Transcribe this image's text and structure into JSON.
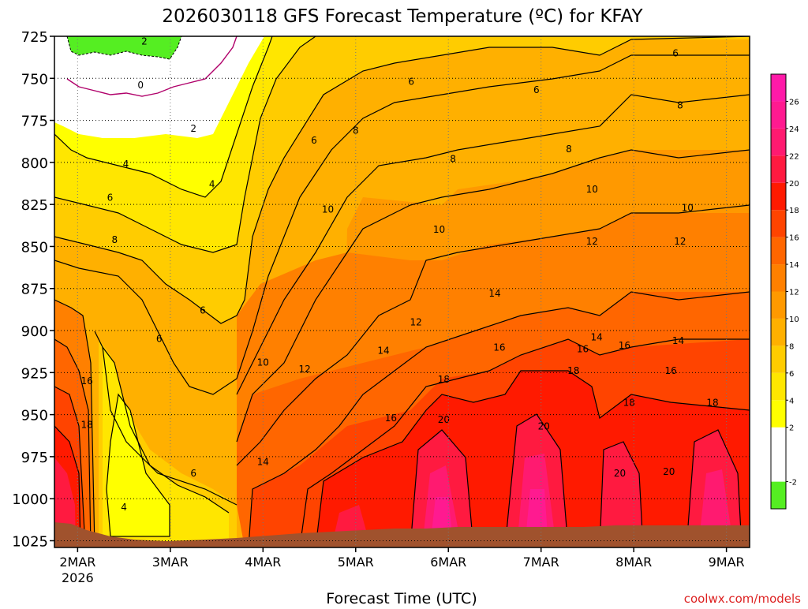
{
  "chart_data": {
    "type": "heatmap",
    "title": "2026030118 GFS Forecast Temperature (ºC) for KFAY",
    "xlabel": "Forecast Time (UTC)",
    "ylabel": "",
    "credit": "coolwx.com/models",
    "x_ticks": [
      {
        "label": "2MAR",
        "sublabel": "2026",
        "day": 0
      },
      {
        "label": "3MAR",
        "day": 1
      },
      {
        "label": "4MAR",
        "day": 2
      },
      {
        "label": "5MAR",
        "day": 3
      },
      {
        "label": "6MAR",
        "day": 4
      },
      {
        "label": "7MAR",
        "day": 5
      },
      {
        "label": "8MAR",
        "day": 6
      },
      {
        "label": "9MAR",
        "day": 7
      }
    ],
    "xlim_days": [
      -0.25,
      7.25
    ],
    "y_ticks": [
      725,
      750,
      775,
      800,
      825,
      850,
      875,
      900,
      925,
      950,
      975,
      1000,
      1025
    ],
    "ylim_hpa": [
      725,
      1029
    ],
    "grid": true,
    "colorbar": {
      "bands": [
        {
          "from": -4,
          "to": -2,
          "color": "#55ee22"
        },
        {
          "from": -2,
          "to": 2,
          "color": "#ffffff"
        },
        {
          "from": 2,
          "to": 4,
          "color": "#ffff00"
        },
        {
          "from": 4,
          "to": 6,
          "color": "#ffe600"
        },
        {
          "from": 6,
          "to": 8,
          "color": "#ffcc00"
        },
        {
          "from": 8,
          "to": 10,
          "color": "#ffb000"
        },
        {
          "from": 10,
          "to": 12,
          "color": "#ff9900"
        },
        {
          "from": 12,
          "to": 14,
          "color": "#ff8000"
        },
        {
          "from": 14,
          "to": 16,
          "color": "#ff6600"
        },
        {
          "from": 16,
          "to": 18,
          "color": "#ff4400"
        },
        {
          "from": 18,
          "to": 20,
          "color": "#ff1a00"
        },
        {
          "from": 20,
          "to": 22,
          "color": "#ff1a40"
        },
        {
          "from": 22,
          "to": 24,
          "color": "#ff1a70"
        },
        {
          "from": 24,
          "to": 26,
          "color": "#ff1a90"
        },
        {
          "from": 26,
          "to": 28,
          "color": "#ff1aa8"
        }
      ],
      "tick_labels": [
        "-2",
        "2",
        "4",
        "6",
        "8",
        "10",
        "12",
        "14",
        "16",
        "18",
        "20",
        "22",
        "24",
        "26"
      ],
      "tick_values": [
        -2,
        2,
        4,
        6,
        8,
        10,
        12,
        14,
        16,
        18,
        20,
        22,
        24,
        26
      ]
    },
    "ground_color": "#a0522d",
    "contour_labels": [
      {
        "text": "2",
        "day": 0.72,
        "p": 728
      },
      {
        "text": "0",
        "day": 0.68,
        "p": 754
      },
      {
        "text": "2",
        "day": 1.25,
        "p": 780
      },
      {
        "text": "4",
        "day": 0.52,
        "p": 801
      },
      {
        "text": "4",
        "day": 1.45,
        "p": 813
      },
      {
        "text": "6",
        "day": 0.35,
        "p": 821
      },
      {
        "text": "6",
        "day": 2.55,
        "p": 787
      },
      {
        "text": "8",
        "day": 0.4,
        "p": 846
      },
      {
        "text": "6",
        "day": 1.35,
        "p": 888
      },
      {
        "text": "6",
        "day": 0.88,
        "p": 905
      },
      {
        "text": "6",
        "day": 1.25,
        "p": 985
      },
      {
        "text": "4",
        "day": 0.5,
        "p": 1005
      },
      {
        "text": "16",
        "day": 0.1,
        "p": 930
      },
      {
        "text": "18",
        "day": 0.1,
        "p": 956
      },
      {
        "text": "8",
        "day": 3.0,
        "p": 781
      },
      {
        "text": "10",
        "day": 2.7,
        "p": 828
      },
      {
        "text": "10",
        "day": 2.0,
        "p": 919
      },
      {
        "text": "12",
        "day": 2.45,
        "p": 923
      },
      {
        "text": "14",
        "day": 2.0,
        "p": 978
      },
      {
        "text": "14",
        "day": 3.3,
        "p": 912
      },
      {
        "text": "16",
        "day": 3.38,
        "p": 952
      },
      {
        "text": "6",
        "day": 3.6,
        "p": 752
      },
      {
        "text": "8",
        "day": 4.05,
        "p": 798
      },
      {
        "text": "10",
        "day": 3.9,
        "p": 840
      },
      {
        "text": "12",
        "day": 3.65,
        "p": 895
      },
      {
        "text": "14",
        "day": 4.5,
        "p": 878
      },
      {
        "text": "16",
        "day": 4.55,
        "p": 910
      },
      {
        "text": "18",
        "day": 3.95,
        "p": 929
      },
      {
        "text": "20",
        "day": 3.95,
        "p": 953
      },
      {
        "text": "6",
        "day": 4.95,
        "p": 757
      },
      {
        "text": "8",
        "day": 5.3,
        "p": 792
      },
      {
        "text": "10",
        "day": 5.55,
        "p": 816
      },
      {
        "text": "12",
        "day": 5.55,
        "p": 847
      },
      {
        "text": "14",
        "day": 5.6,
        "p": 904
      },
      {
        "text": "16",
        "day": 5.45,
        "p": 911
      },
      {
        "text": "18",
        "day": 5.35,
        "p": 924
      },
      {
        "text": "20",
        "day": 5.03,
        "p": 957
      },
      {
        "text": "16",
        "day": 5.9,
        "p": 909
      },
      {
        "text": "18",
        "day": 5.95,
        "p": 943
      },
      {
        "text": "20",
        "day": 5.85,
        "p": 985
      },
      {
        "text": "6",
        "day": 6.45,
        "p": 735
      },
      {
        "text": "8",
        "day": 6.5,
        "p": 766
      },
      {
        "text": "10",
        "day": 6.58,
        "p": 827
      },
      {
        "text": "12",
        "day": 6.5,
        "p": 847
      },
      {
        "text": "14",
        "day": 6.48,
        "p": 906
      },
      {
        "text": "16",
        "day": 6.4,
        "p": 924
      },
      {
        "text": "18",
        "day": 6.85,
        "p": 943
      },
      {
        "text": "20",
        "day": 6.38,
        "p": 984
      }
    ]
  }
}
